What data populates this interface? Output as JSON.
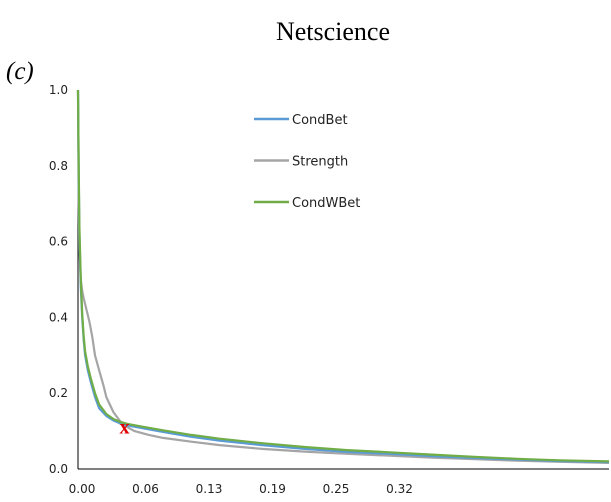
{
  "chart_data": {
    "type": "line",
    "title": "Netscience",
    "panel_label": "(c)",
    "xlabel": "",
    "ylabel": "",
    "xlim": [
      0,
      0.375
    ],
    "ylim": [
      0,
      1.0
    ],
    "x_ticks": [
      "0.00",
      "0.06",
      "0.13",
      "0.19",
      "0.25",
      "0.32"
    ],
    "y_ticks": [
      "0.0",
      "0.2",
      "0.4",
      "0.6",
      "0.8",
      "1.0"
    ],
    "grid": false,
    "legend": {
      "placement": "top-center"
    },
    "series": [
      {
        "name": "CondBet",
        "color": "#5b9bd5",
        "points": [
          [
            0.0,
            1.0
          ],
          [
            0.0005,
            0.78
          ],
          [
            0.001,
            0.62
          ],
          [
            0.002,
            0.48
          ],
          [
            0.003,
            0.4
          ],
          [
            0.004,
            0.34
          ],
          [
            0.005,
            0.3
          ],
          [
            0.007,
            0.26
          ],
          [
            0.009,
            0.23
          ],
          [
            0.012,
            0.19
          ],
          [
            0.015,
            0.16
          ],
          [
            0.02,
            0.14
          ],
          [
            0.025,
            0.128
          ],
          [
            0.03,
            0.12
          ],
          [
            0.035,
            0.115
          ],
          [
            0.045,
            0.108
          ],
          [
            0.06,
            0.098
          ],
          [
            0.08,
            0.085
          ],
          [
            0.1,
            0.075
          ],
          [
            0.13,
            0.063
          ],
          [
            0.16,
            0.053
          ],
          [
            0.19,
            0.045
          ],
          [
            0.22,
            0.04
          ],
          [
            0.25,
            0.034
          ],
          [
            0.28,
            0.029
          ],
          [
            0.31,
            0.025
          ],
          [
            0.34,
            0.021
          ],
          [
            0.375,
            0.018
          ]
        ]
      },
      {
        "name": "Strength",
        "color": "#a5a5a5",
        "points": [
          [
            0.0,
            1.0
          ],
          [
            0.0005,
            0.7
          ],
          [
            0.001,
            0.58
          ],
          [
            0.002,
            0.5
          ],
          [
            0.003,
            0.47
          ],
          [
            0.004,
            0.45
          ],
          [
            0.006,
            0.42
          ],
          [
            0.008,
            0.39
          ],
          [
            0.01,
            0.35
          ],
          [
            0.012,
            0.3
          ],
          [
            0.015,
            0.26
          ],
          [
            0.018,
            0.22
          ],
          [
            0.02,
            0.19
          ],
          [
            0.025,
            0.15
          ],
          [
            0.03,
            0.125
          ],
          [
            0.035,
            0.11
          ],
          [
            0.04,
            0.1
          ],
          [
            0.05,
            0.09
          ],
          [
            0.06,
            0.082
          ],
          [
            0.08,
            0.072
          ],
          [
            0.1,
            0.063
          ],
          [
            0.13,
            0.053
          ],
          [
            0.16,
            0.046
          ],
          [
            0.19,
            0.04
          ],
          [
            0.22,
            0.035
          ],
          [
            0.25,
            0.03
          ],
          [
            0.28,
            0.026
          ],
          [
            0.31,
            0.022
          ],
          [
            0.34,
            0.019
          ],
          [
            0.375,
            0.016
          ]
        ]
      },
      {
        "name": "CondWBet",
        "color": "#70ad47",
        "points": [
          [
            0.0,
            1.0
          ],
          [
            0.0005,
            0.8
          ],
          [
            0.001,
            0.64
          ],
          [
            0.002,
            0.5
          ],
          [
            0.003,
            0.41
          ],
          [
            0.004,
            0.35
          ],
          [
            0.005,
            0.31
          ],
          [
            0.007,
            0.27
          ],
          [
            0.009,
            0.24
          ],
          [
            0.012,
            0.2
          ],
          [
            0.015,
            0.17
          ],
          [
            0.02,
            0.145
          ],
          [
            0.025,
            0.132
          ],
          [
            0.03,
            0.124
          ],
          [
            0.035,
            0.119
          ],
          [
            0.045,
            0.112
          ],
          [
            0.06,
            0.102
          ],
          [
            0.08,
            0.09
          ],
          [
            0.1,
            0.08
          ],
          [
            0.13,
            0.068
          ],
          [
            0.16,
            0.058
          ],
          [
            0.19,
            0.05
          ],
          [
            0.22,
            0.044
          ],
          [
            0.25,
            0.038
          ],
          [
            0.28,
            0.032
          ],
          [
            0.31,
            0.027
          ],
          [
            0.34,
            0.023
          ],
          [
            0.375,
            0.02
          ]
        ]
      }
    ],
    "annotations": [
      {
        "text": "x",
        "x": 0.035,
        "y": 0.115,
        "color": "#e00000"
      }
    ]
  }
}
